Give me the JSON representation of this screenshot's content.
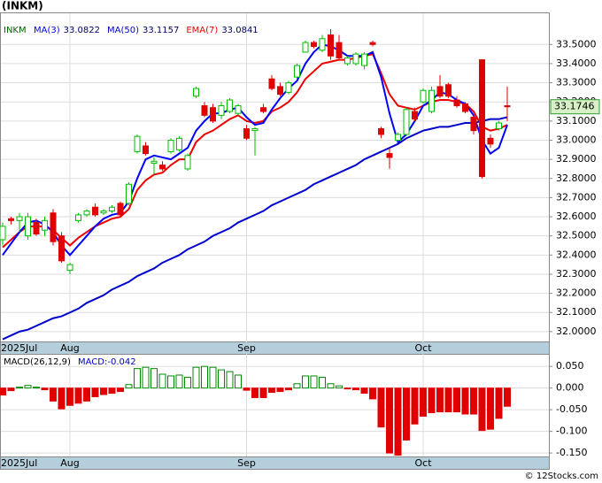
{
  "chart_data": [
    {
      "type": "candlestick",
      "title": "(INKM)",
      "symbol": "INKM",
      "categories": [
        "2025Jul",
        null,
        null,
        null,
        null,
        null,
        null,
        null,
        "Aug",
        null,
        null,
        null,
        null,
        null,
        null,
        null,
        null,
        null,
        null,
        null,
        null,
        null,
        null,
        null,
        null,
        null,
        null,
        null,
        null,
        "Sep",
        null,
        null,
        null,
        null,
        null,
        null,
        null,
        null,
        null,
        null,
        null,
        null,
        null,
        null,
        null,
        null,
        null,
        null,
        null,
        null,
        "Oct",
        null,
        null,
        null,
        null,
        null,
        null,
        null,
        null,
        null,
        null
      ],
      "open": [
        32.48,
        32.59,
        32.58,
        32.5,
        32.57,
        32.53,
        32.62,
        32.5,
        32.32,
        32.58,
        32.61,
        32.65,
        32.62,
        32.63,
        32.67,
        32.67,
        32.94,
        32.97,
        32.88,
        32.87,
        32.94,
        32.95,
        32.85,
        33.23,
        33.18,
        33.17,
        33.13,
        33.15,
        33.14,
        33.06,
        33.05,
        33.17,
        33.32,
        33.28,
        33.25,
        33.33,
        33.46,
        33.51,
        33.47,
        33.55,
        33.51,
        33.4,
        33.4,
        33.39,
        33.51,
        33.06,
        32.93,
        33.0,
        33.03,
        33.15,
        33.2,
        33.15,
        33.28,
        33.29,
        33.21,
        33.19,
        33.12,
        33.42,
        33.01,
        33.06,
        33.18
      ],
      "high": [
        32.57,
        32.6,
        32.62,
        32.62,
        32.59,
        32.6,
        32.64,
        32.52,
        32.36,
        32.62,
        32.64,
        32.67,
        32.64,
        32.66,
        32.68,
        32.78,
        33.03,
        32.99,
        32.91,
        32.89,
        33.01,
        33.02,
        32.93,
        33.28,
        33.2,
        33.19,
        33.2,
        33.22,
        33.19,
        33.08,
        33.07,
        33.19,
        33.34,
        33.3,
        33.31,
        33.4,
        33.52,
        33.52,
        33.55,
        33.58,
        33.55,
        33.44,
        33.46,
        33.46,
        33.52,
        33.07,
        32.96,
        33.04,
        33.17,
        33.17,
        33.27,
        33.28,
        33.34,
        33.3,
        33.23,
        33.2,
        33.13,
        33.42,
        33.03,
        33.1,
        33.28
      ],
      "low": [
        32.45,
        32.56,
        32.52,
        32.48,
        32.5,
        32.5,
        32.45,
        32.36,
        32.3,
        32.57,
        32.6,
        32.6,
        32.61,
        32.62,
        32.6,
        32.66,
        32.93,
        32.92,
        32.82,
        32.84,
        32.93,
        32.94,
        32.84,
        33.22,
        33.12,
        33.09,
        33.11,
        33.14,
        33.13,
        33.0,
        32.92,
        33.14,
        33.26,
        33.23,
        33.24,
        33.32,
        33.46,
        33.48,
        33.46,
        33.42,
        33.42,
        33.39,
        33.39,
        33.37,
        33.49,
        33.01,
        32.85,
        32.99,
        33.02,
        33.1,
        33.19,
        33.14,
        33.22,
        33.22,
        33.17,
        33.14,
        33.03,
        32.8,
        32.96,
        33.05,
        33.1
      ],
      "close": [
        32.55,
        32.58,
        32.6,
        32.6,
        32.51,
        32.58,
        32.47,
        32.37,
        32.35,
        32.61,
        32.63,
        32.61,
        32.63,
        32.65,
        32.61,
        32.77,
        33.02,
        32.93,
        32.89,
        32.85,
        33.0,
        33.01,
        32.92,
        33.27,
        33.13,
        33.1,
        33.18,
        33.21,
        33.18,
        33.01,
        33.06,
        33.15,
        33.27,
        33.24,
        33.3,
        33.39,
        33.51,
        33.49,
        33.53,
        33.44,
        33.43,
        33.43,
        33.45,
        33.45,
        33.5,
        33.03,
        32.91,
        33.03,
        33.16,
        33.11,
        33.26,
        33.26,
        33.23,
        33.23,
        33.18,
        33.15,
        33.05,
        32.81,
        32.98,
        33.09,
        33.1746
      ],
      "up_color": "#00bb00",
      "down_color": "#e00000",
      "series": [
        {
          "name": "EMA(7)",
          "color": "#ee0000",
          "legend_value": 33.0841,
          "values": [
            32.44,
            32.48,
            32.52,
            32.55,
            32.55,
            32.55,
            32.53,
            32.49,
            32.45,
            32.49,
            32.52,
            32.55,
            32.57,
            32.59,
            32.6,
            32.64,
            32.74,
            32.79,
            32.82,
            32.83,
            32.87,
            32.9,
            32.9,
            32.99,
            33.03,
            33.05,
            33.08,
            33.11,
            33.13,
            33.1,
            33.09,
            33.1,
            33.15,
            33.17,
            33.2,
            33.25,
            33.32,
            33.36,
            33.4,
            33.41,
            33.42,
            33.42,
            33.43,
            33.44,
            33.45,
            33.35,
            33.24,
            33.18,
            33.17,
            33.16,
            33.18,
            33.2,
            33.21,
            33.21,
            33.2,
            33.19,
            33.15,
            33.07,
            33.05,
            33.06,
            33.08
          ]
        },
        {
          "name": "MA(3)",
          "color": "#0000ff",
          "legend_value": 33.0822,
          "values": [
            32.4,
            32.46,
            32.52,
            32.57,
            32.58,
            32.56,
            32.52,
            32.45,
            32.4,
            32.45,
            32.5,
            32.55,
            32.59,
            32.61,
            32.62,
            32.68,
            32.8,
            32.9,
            32.92,
            32.91,
            32.9,
            32.93,
            32.96,
            33.05,
            33.1,
            33.14,
            33.14,
            33.16,
            33.17,
            33.12,
            33.08,
            33.09,
            33.16,
            33.22,
            33.27,
            33.31,
            33.4,
            33.46,
            33.5,
            33.49,
            33.47,
            33.44,
            33.44,
            33.44,
            33.46,
            33.33,
            33.14,
            32.99,
            33.03,
            33.1,
            33.18,
            33.21,
            33.25,
            33.24,
            33.21,
            33.19,
            33.13,
            33.0,
            32.93,
            32.96,
            33.08
          ]
        },
        {
          "name": "MA(50)",
          "color": "#0000cc",
          "legend_value": 33.1157,
          "values": [
            31.96,
            31.98,
            32.0,
            32.01,
            32.03,
            32.05,
            32.07,
            32.08,
            32.1,
            32.12,
            32.15,
            32.17,
            32.19,
            32.22,
            32.24,
            32.26,
            32.29,
            32.31,
            32.33,
            32.36,
            32.38,
            32.4,
            32.43,
            32.45,
            32.47,
            32.5,
            32.52,
            32.54,
            32.57,
            32.59,
            32.61,
            32.63,
            32.66,
            32.68,
            32.7,
            32.72,
            32.74,
            32.77,
            32.79,
            32.81,
            32.83,
            32.85,
            32.87,
            32.9,
            32.92,
            32.94,
            32.96,
            32.98,
            33.01,
            33.03,
            33.05,
            33.06,
            33.07,
            33.07,
            33.08,
            33.09,
            33.09,
            33.1,
            33.11,
            33.11,
            33.12
          ]
        }
      ],
      "ylim": [
        31.944,
        33.663
      ],
      "yticks": [
        {
          "value": 32.0,
          "label": "32.0000"
        },
        {
          "value": 32.1,
          "label": "32.1000"
        },
        {
          "value": 32.2,
          "label": "32.2000"
        },
        {
          "value": 32.3,
          "label": "32.3000"
        },
        {
          "value": 32.4,
          "label": "32.4000"
        },
        {
          "value": 32.5,
          "label": "32.5000"
        },
        {
          "value": 32.6,
          "label": "32.6000"
        },
        {
          "value": 32.7,
          "label": "32.7000"
        },
        {
          "value": 32.8,
          "label": "32.8000"
        },
        {
          "value": 32.9,
          "label": "32.9000"
        },
        {
          "value": 33.0,
          "label": "33.0000"
        },
        {
          "value": 33.1,
          "label": "33.1000"
        },
        {
          "value": 33.2,
          "label": "33.2000"
        },
        {
          "value": 33.3,
          "label": "33.3000"
        },
        {
          "value": 33.4,
          "label": "33.4000"
        },
        {
          "value": 33.5,
          "label": "33.5000"
        }
      ],
      "grid": true
    },
    {
      "type": "bar",
      "title": "MACD(26,12,9)",
      "legend": "MACD:-0.042",
      "categories": [
        "2025Jul",
        null,
        null,
        null,
        null,
        null,
        null,
        null,
        "Aug",
        null,
        null,
        null,
        null,
        null,
        null,
        null,
        null,
        null,
        null,
        null,
        null,
        null,
        null,
        null,
        null,
        null,
        null,
        null,
        null,
        "Sep",
        null,
        null,
        null,
        null,
        null,
        null,
        null,
        null,
        null,
        null,
        null,
        null,
        null,
        null,
        null,
        null,
        null,
        null,
        null,
        null,
        "Oct",
        null,
        null,
        null,
        null,
        null,
        null,
        null,
        null,
        null,
        null
      ],
      "values": [
        -0.016,
        -0.006,
        0.002,
        0.006,
        0.002,
        -0.004,
        -0.03,
        -0.048,
        -0.04,
        -0.035,
        -0.03,
        -0.02,
        -0.015,
        -0.012,
        -0.008,
        0.008,
        0.045,
        0.048,
        0.045,
        0.032,
        0.028,
        0.03,
        0.025,
        0.048,
        0.05,
        0.048,
        0.042,
        0.038,
        0.03,
        -0.005,
        -0.022,
        -0.022,
        -0.01,
        -0.008,
        -0.004,
        0.01,
        0.028,
        0.028,
        0.025,
        0.01,
        0.005,
        -0.002,
        -0.004,
        -0.012,
        -0.025,
        -0.09,
        -0.15,
        -0.155,
        -0.12,
        -0.083,
        -0.065,
        -0.057,
        -0.055,
        -0.055,
        -0.055,
        -0.06,
        -0.06,
        -0.098,
        -0.095,
        -0.07,
        -0.042
      ],
      "up_color": "#008800",
      "down_color": "#e00000",
      "ylim": [
        -0.158,
        0.079
      ],
      "yticks": [
        {
          "value": 0.05,
          "label": "0.050"
        },
        {
          "value": 0,
          "label": "0.000"
        },
        {
          "value": -0.05,
          "label": "-0.050"
        },
        {
          "value": -0.1,
          "label": "-0.100"
        },
        {
          "value": -0.15,
          "label": "-0.150"
        }
      ],
      "grid": true
    }
  ],
  "source": "© 12Stocks.com"
}
